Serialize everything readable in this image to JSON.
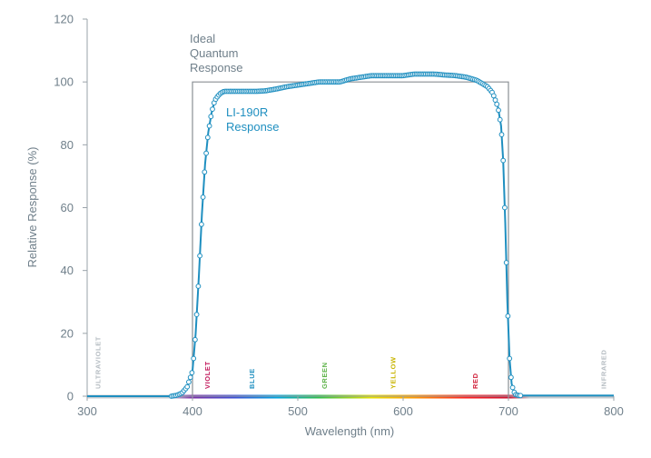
{
  "chart_data": {
    "type": "line",
    "title": "",
    "xlabel": "Wavelength (nm)",
    "ylabel": "Relative Response (%)",
    "xlim": [
      300,
      800
    ],
    "ylim": [
      0,
      120
    ],
    "x_ticks": [
      "300",
      "400",
      "500",
      "600",
      "700",
      "800"
    ],
    "y_ticks": [
      "0",
      "20",
      "40",
      "60",
      "80",
      "100",
      "120"
    ],
    "grid": false,
    "annotations": {
      "ideal_label": [
        "Ideal",
        "Quantum",
        "Response"
      ],
      "series_label": [
        "LI-190R",
        "Response"
      ]
    },
    "ideal_response": {
      "name": "Ideal Quantum Response",
      "x": [
        400,
        400,
        700,
        700
      ],
      "y": [
        0,
        100,
        100,
        0
      ],
      "color": "#8a8f94"
    },
    "series": [
      {
        "name": "LI-190R Response",
        "color": "#1f8fc0",
        "x": [
          300,
          350,
          380,
          385,
          390,
          395,
          400,
          403,
          406,
          409,
          412,
          415,
          418,
          421,
          424,
          427,
          430,
          435,
          440,
          450,
          460,
          470,
          480,
          490,
          500,
          510,
          520,
          530,
          540,
          550,
          560,
          570,
          580,
          590,
          600,
          610,
          620,
          630,
          640,
          650,
          660,
          670,
          680,
          685,
          690,
          693,
          695,
          697,
          699,
          701,
          703,
          705,
          707,
          710,
          715,
          750,
          800
        ],
        "y": [
          0,
          0,
          0,
          0.3,
          1,
          3,
          8,
          20,
          38,
          58,
          74,
          84,
          90,
          94,
          95.5,
          96.5,
          97,
          97,
          97,
          97,
          97,
          97.2,
          97.8,
          98.5,
          99,
          99.5,
          100,
          100,
          100,
          101,
          101.5,
          102,
          102,
          102,
          102,
          102.5,
          102.5,
          102.5,
          102.2,
          102,
          101.5,
          100.5,
          98.5,
          96.5,
          92,
          86,
          75,
          55,
          30,
          12,
          4,
          1.5,
          0.5,
          0.2,
          0.2,
          0.2,
          0.2
        ]
      }
    ],
    "spectrum_bands": [
      {
        "label": "ULTRAVIOLET",
        "x": 310,
        "color": "#b5bcc2"
      },
      {
        "label": "VIOLET",
        "x": 414,
        "color": "#c2185b"
      },
      {
        "label": "BLUE",
        "x": 456,
        "color": "#1f8fc0"
      },
      {
        "label": "GREEN",
        "x": 525,
        "color": "#5fb34a"
      },
      {
        "label": "YELLOW",
        "x": 590,
        "color": "#c8b400"
      },
      {
        "label": "RED",
        "x": 668,
        "color": "#d0203a"
      },
      {
        "label": "INFRARED",
        "x": 790,
        "color": "#b5bcc2"
      }
    ],
    "spectrum_gradient": [
      {
        "x": 300,
        "color": "#c7ccd0"
      },
      {
        "x": 380,
        "color": "#c7ccd0"
      },
      {
        "x": 400,
        "color": "#7b2fa8"
      },
      {
        "x": 440,
        "color": "#3d4fd6"
      },
      {
        "x": 480,
        "color": "#00a6e0"
      },
      {
        "x": 520,
        "color": "#2fc04a"
      },
      {
        "x": 570,
        "color": "#e6e000"
      },
      {
        "x": 610,
        "color": "#ff9a00"
      },
      {
        "x": 660,
        "color": "#ff2020"
      },
      {
        "x": 700,
        "color": "#d01030"
      },
      {
        "x": 720,
        "color": "#c7ccd0"
      },
      {
        "x": 800,
        "color": "#c7ccd0"
      }
    ]
  }
}
